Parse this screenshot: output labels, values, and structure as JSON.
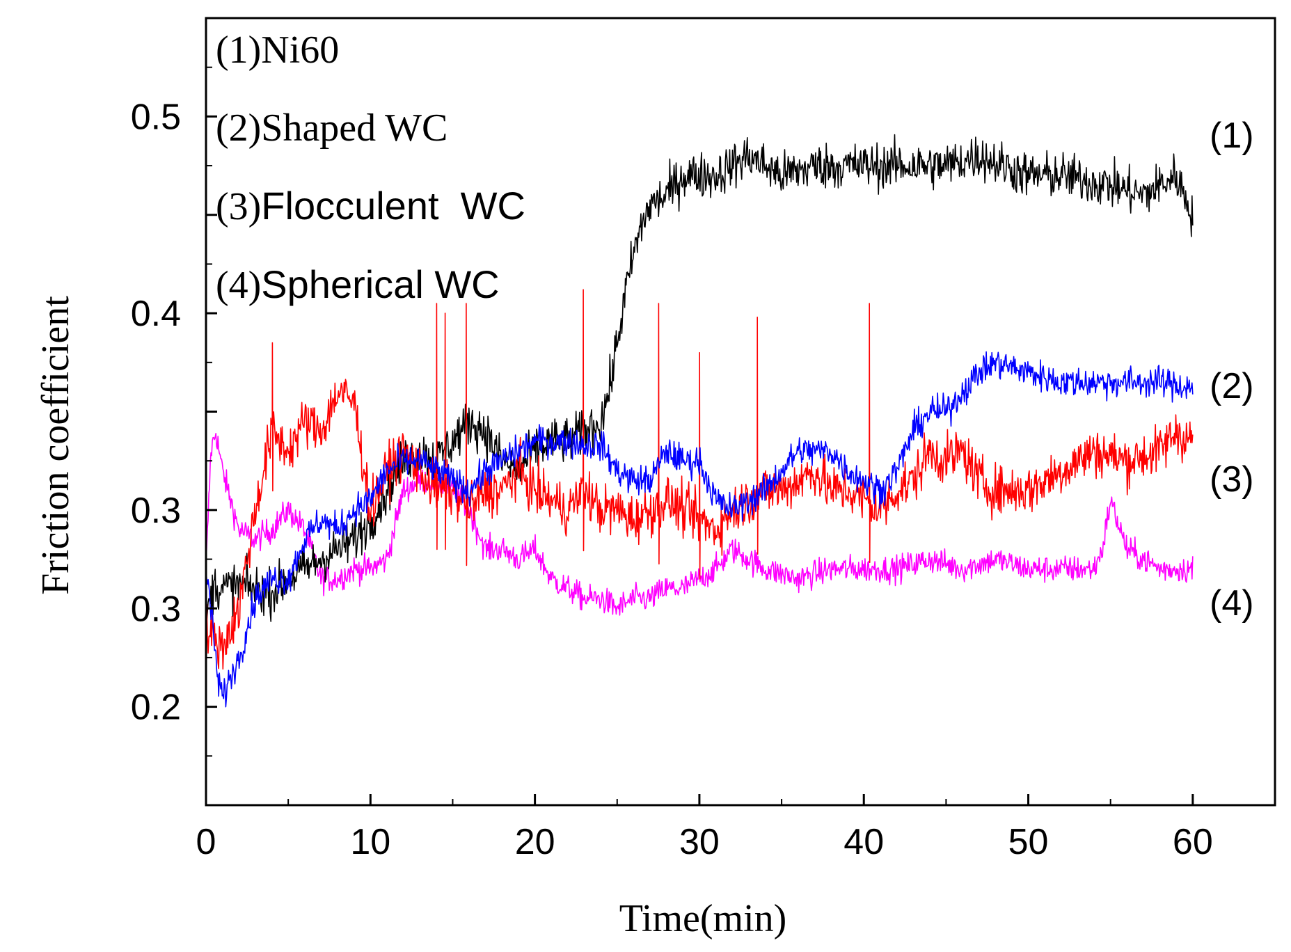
{
  "chart_data": {
    "type": "line",
    "title": "",
    "xlabel": "Time(min)",
    "ylabel": "Friction coefficient",
    "xlim": [
      0,
      65
    ],
    "ylim": [
      0.15,
      0.55
    ],
    "x_ticks": [
      0,
      10,
      20,
      30,
      40,
      50,
      60
    ],
    "x_tick_labels": [
      "0",
      "10",
      "20",
      "30",
      "40",
      "50",
      "60"
    ],
    "y_ticks": [
      0.2,
      0.25,
      0.3,
      0.35,
      0.4,
      0.45,
      0.5
    ],
    "y_tick_labels": [
      "0.2",
      "0.3",
      "0.3",
      "0.4",
      "0.5"
    ],
    "y_labeled_tick_values": [
      0.2,
      0.25,
      0.3,
      0.4,
      0.5
    ],
    "grid": false,
    "legend": {
      "position": "top-left",
      "entries": [
        {
          "number": "(1)",
          "text": "Ni60",
          "style": "serif"
        },
        {
          "number": "(2)",
          "text": "Shaped WC",
          "style": "serif"
        },
        {
          "number": "(3)",
          "text": "Flocculent  WC",
          "style": "mixed"
        },
        {
          "number": "(4)",
          "text": "Spherical WC",
          "style": "sans"
        }
      ]
    },
    "curve_labels": [
      "(1)",
      "(2)",
      "(3)",
      "(4)"
    ],
    "series": [
      {
        "name": "(1)Ni60",
        "color": "#000000",
        "noise": 0.012,
        "x": [
          0,
          0.5,
          1,
          2,
          3,
          4,
          5,
          6,
          7,
          8,
          9,
          10,
          11,
          12,
          13,
          14,
          15,
          16,
          17,
          18,
          19,
          20,
          21,
          22,
          23,
          24,
          24.5,
          25,
          25.5,
          26,
          26.5,
          27,
          28,
          29,
          30,
          31,
          32,
          33,
          35,
          37,
          40,
          43,
          45,
          47,
          50,
          52,
          55,
          57,
          59,
          60
        ],
        "values": [
          0.245,
          0.262,
          0.26,
          0.262,
          0.26,
          0.258,
          0.265,
          0.27,
          0.275,
          0.28,
          0.285,
          0.295,
          0.31,
          0.325,
          0.33,
          0.325,
          0.335,
          0.345,
          0.34,
          0.325,
          0.32,
          0.33,
          0.335,
          0.335,
          0.34,
          0.345,
          0.36,
          0.385,
          0.41,
          0.43,
          0.445,
          0.455,
          0.46,
          0.47,
          0.47,
          0.47,
          0.475,
          0.48,
          0.47,
          0.475,
          0.475,
          0.475,
          0.475,
          0.48,
          0.47,
          0.47,
          0.465,
          0.46,
          0.47,
          0.45
        ]
      },
      {
        "name": "(2)Shaped WC",
        "color": "#0000ff",
        "noise": 0.008,
        "x": [
          0,
          0.3,
          0.7,
          1,
          2,
          3,
          4,
          5,
          6,
          7,
          8,
          9,
          10,
          11,
          12,
          13,
          14,
          15,
          16,
          17,
          18,
          19,
          20,
          21,
          22,
          23,
          24,
          25,
          26,
          27,
          28,
          29,
          30,
          31,
          32,
          33,
          34,
          35,
          36,
          37,
          38,
          39,
          40,
          41,
          42,
          43,
          44,
          45,
          46,
          47,
          48,
          50,
          52,
          54,
          56,
          58,
          60
        ],
        "values": [
          0.27,
          0.25,
          0.215,
          0.205,
          0.225,
          0.255,
          0.265,
          0.265,
          0.285,
          0.295,
          0.29,
          0.3,
          0.305,
          0.32,
          0.325,
          0.325,
          0.32,
          0.315,
          0.31,
          0.32,
          0.325,
          0.33,
          0.335,
          0.335,
          0.335,
          0.333,
          0.333,
          0.32,
          0.315,
          0.315,
          0.33,
          0.325,
          0.325,
          0.305,
          0.3,
          0.305,
          0.31,
          0.32,
          0.33,
          0.33,
          0.33,
          0.32,
          0.315,
          0.31,
          0.32,
          0.34,
          0.35,
          0.35,
          0.36,
          0.37,
          0.375,
          0.37,
          0.365,
          0.365,
          0.365,
          0.365,
          0.362
        ]
      },
      {
        "name": "(3)Flocculent WC",
        "color": "#ff0000",
        "noise": 0.013,
        "spikes": [
          [
            4,
            0.385
          ],
          [
            14,
            0.405
          ],
          [
            14.5,
            0.4
          ],
          [
            15.8,
            0.405
          ],
          [
            22.9,
            0.412
          ],
          [
            27.5,
            0.405
          ],
          [
            30,
            0.38
          ],
          [
            33.5,
            0.398
          ],
          [
            40.3,
            0.405
          ]
        ],
        "x": [
          0,
          1,
          2,
          3,
          4,
          5,
          6,
          7,
          8,
          9,
          10,
          11,
          12,
          13,
          14,
          15,
          16,
          17,
          18,
          19,
          20,
          21,
          22,
          23,
          24,
          25,
          26,
          27,
          28,
          29,
          30,
          31,
          32,
          33,
          34,
          35,
          36,
          37,
          38,
          39,
          40,
          41,
          42,
          43,
          44,
          45,
          46,
          47,
          48,
          49,
          50,
          52,
          54,
          56,
          58,
          59,
          60
        ],
        "values": [
          0.24,
          0.23,
          0.25,
          0.3,
          0.34,
          0.33,
          0.345,
          0.34,
          0.36,
          0.355,
          0.3,
          0.32,
          0.33,
          0.32,
          0.31,
          0.31,
          0.3,
          0.31,
          0.31,
          0.32,
          0.31,
          0.305,
          0.3,
          0.31,
          0.3,
          0.3,
          0.295,
          0.3,
          0.305,
          0.3,
          0.295,
          0.29,
          0.3,
          0.305,
          0.31,
          0.31,
          0.315,
          0.32,
          0.31,
          0.31,
          0.305,
          0.3,
          0.31,
          0.315,
          0.33,
          0.325,
          0.33,
          0.315,
          0.31,
          0.31,
          0.31,
          0.32,
          0.33,
          0.325,
          0.33,
          0.34,
          0.335
        ]
      },
      {
        "name": "(4)Spherical WC",
        "color": "#ff00ff",
        "noise": 0.007,
        "x": [
          0,
          0.3,
          0.6,
          1,
          2,
          3,
          4,
          5,
          6,
          7,
          8,
          9,
          10,
          11,
          12,
          13,
          14,
          15,
          16,
          17,
          18,
          19,
          20,
          21,
          22,
          23,
          24,
          25,
          26,
          27,
          28,
          29,
          30,
          31,
          32,
          34,
          36,
          38,
          40,
          42,
          44,
          46,
          48,
          50,
          52,
          54,
          54.5,
          55,
          56,
          58,
          60
        ],
        "values": [
          0.27,
          0.33,
          0.34,
          0.32,
          0.29,
          0.285,
          0.29,
          0.3,
          0.29,
          0.265,
          0.265,
          0.27,
          0.27,
          0.275,
          0.31,
          0.315,
          0.315,
          0.31,
          0.3,
          0.28,
          0.28,
          0.275,
          0.28,
          0.265,
          0.26,
          0.255,
          0.255,
          0.25,
          0.255,
          0.255,
          0.26,
          0.26,
          0.265,
          0.27,
          0.28,
          0.27,
          0.265,
          0.27,
          0.27,
          0.27,
          0.275,
          0.27,
          0.275,
          0.27,
          0.27,
          0.27,
          0.28,
          0.305,
          0.28,
          0.27,
          0.27
        ]
      }
    ]
  }
}
